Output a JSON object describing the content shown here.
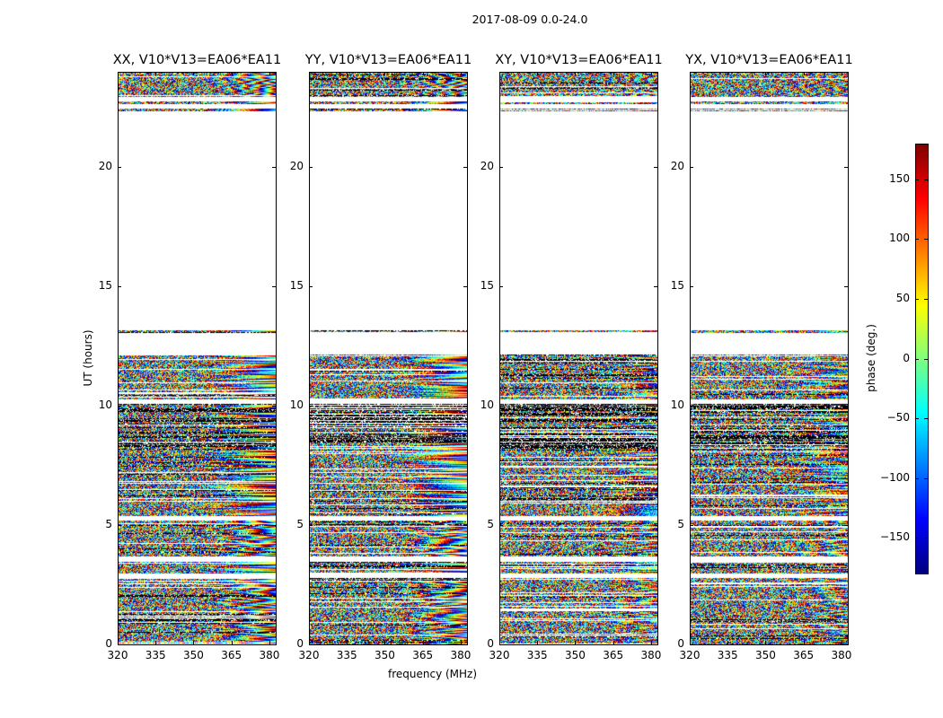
{
  "figure_title": "2017-08-09 0.0-24.0",
  "chart_data": [
    {
      "type": "heatmap",
      "title": "XX, V10*V13=EA06*EA11",
      "xlabel": "frequency (MHz)",
      "ylabel": "UT (hours)",
      "xlim": [
        320,
        382.5
      ],
      "ylim": [
        0,
        24
      ],
      "xticks": [
        320,
        335,
        350,
        365,
        380
      ],
      "yticks": [
        0,
        5,
        10,
        15,
        20
      ],
      "seed": 1,
      "fringe": 1.0
    },
    {
      "type": "heatmap",
      "title": "YY, V10*V13=EA06*EA11",
      "xlabel": "frequency (MHz)",
      "ylabel": "UT (hours)",
      "xlim": [
        320,
        382.5
      ],
      "ylim": [
        0,
        24
      ],
      "xticks": [
        320,
        335,
        350,
        365,
        380
      ],
      "yticks": [
        0,
        5,
        10,
        15,
        20
      ],
      "seed": 2,
      "fringe": 1.0
    },
    {
      "type": "heatmap",
      "title": "XY, V10*V13=EA06*EA11",
      "xlabel": "frequency (MHz)",
      "ylabel": "UT (hours)",
      "xlim": [
        320,
        382.5
      ],
      "ylim": [
        0,
        24
      ],
      "xticks": [
        320,
        335,
        350,
        365,
        380
      ],
      "yticks": [
        0,
        5,
        10,
        15,
        20
      ],
      "seed": 3,
      "fringe": 0.6
    },
    {
      "type": "heatmap",
      "title": "YX, V10*V13=EA06*EA11",
      "xlabel": "frequency (MHz)",
      "ylabel": "UT (hours)",
      "xlim": [
        320,
        382.5
      ],
      "ylim": [
        0,
        24
      ],
      "xticks": [
        320,
        335,
        350,
        365,
        380
      ],
      "yticks": [
        0,
        5,
        10,
        15,
        20
      ],
      "seed": 4,
      "fringe": 0.6
    }
  ],
  "data_time_ranges_hours": [
    [
      0,
      2.8
    ],
    [
      3.0,
      3.5
    ],
    [
      3.7,
      5.2
    ],
    [
      5.4,
      8.2
    ],
    [
      8.2,
      10.1
    ],
    [
      10.3,
      12.2
    ],
    [
      13.1,
      13.2
    ],
    [
      22.4,
      22.5
    ],
    [
      22.7,
      22.8
    ],
    [
      23.0,
      24.0
    ]
  ],
  "colorbar": {
    "label": "phase (deg.)",
    "range": [
      -180,
      180
    ],
    "ticks": [
      150,
      100,
      50,
      0,
      -50,
      -100,
      -150
    ],
    "tick_labels": [
      "150",
      "100",
      "50",
      "0",
      "−50",
      "−100",
      "−150"
    ],
    "colormap": "jet"
  },
  "shared_xlabel": "frequency (MHz)",
  "shared_ylabel": "UT (hours)"
}
